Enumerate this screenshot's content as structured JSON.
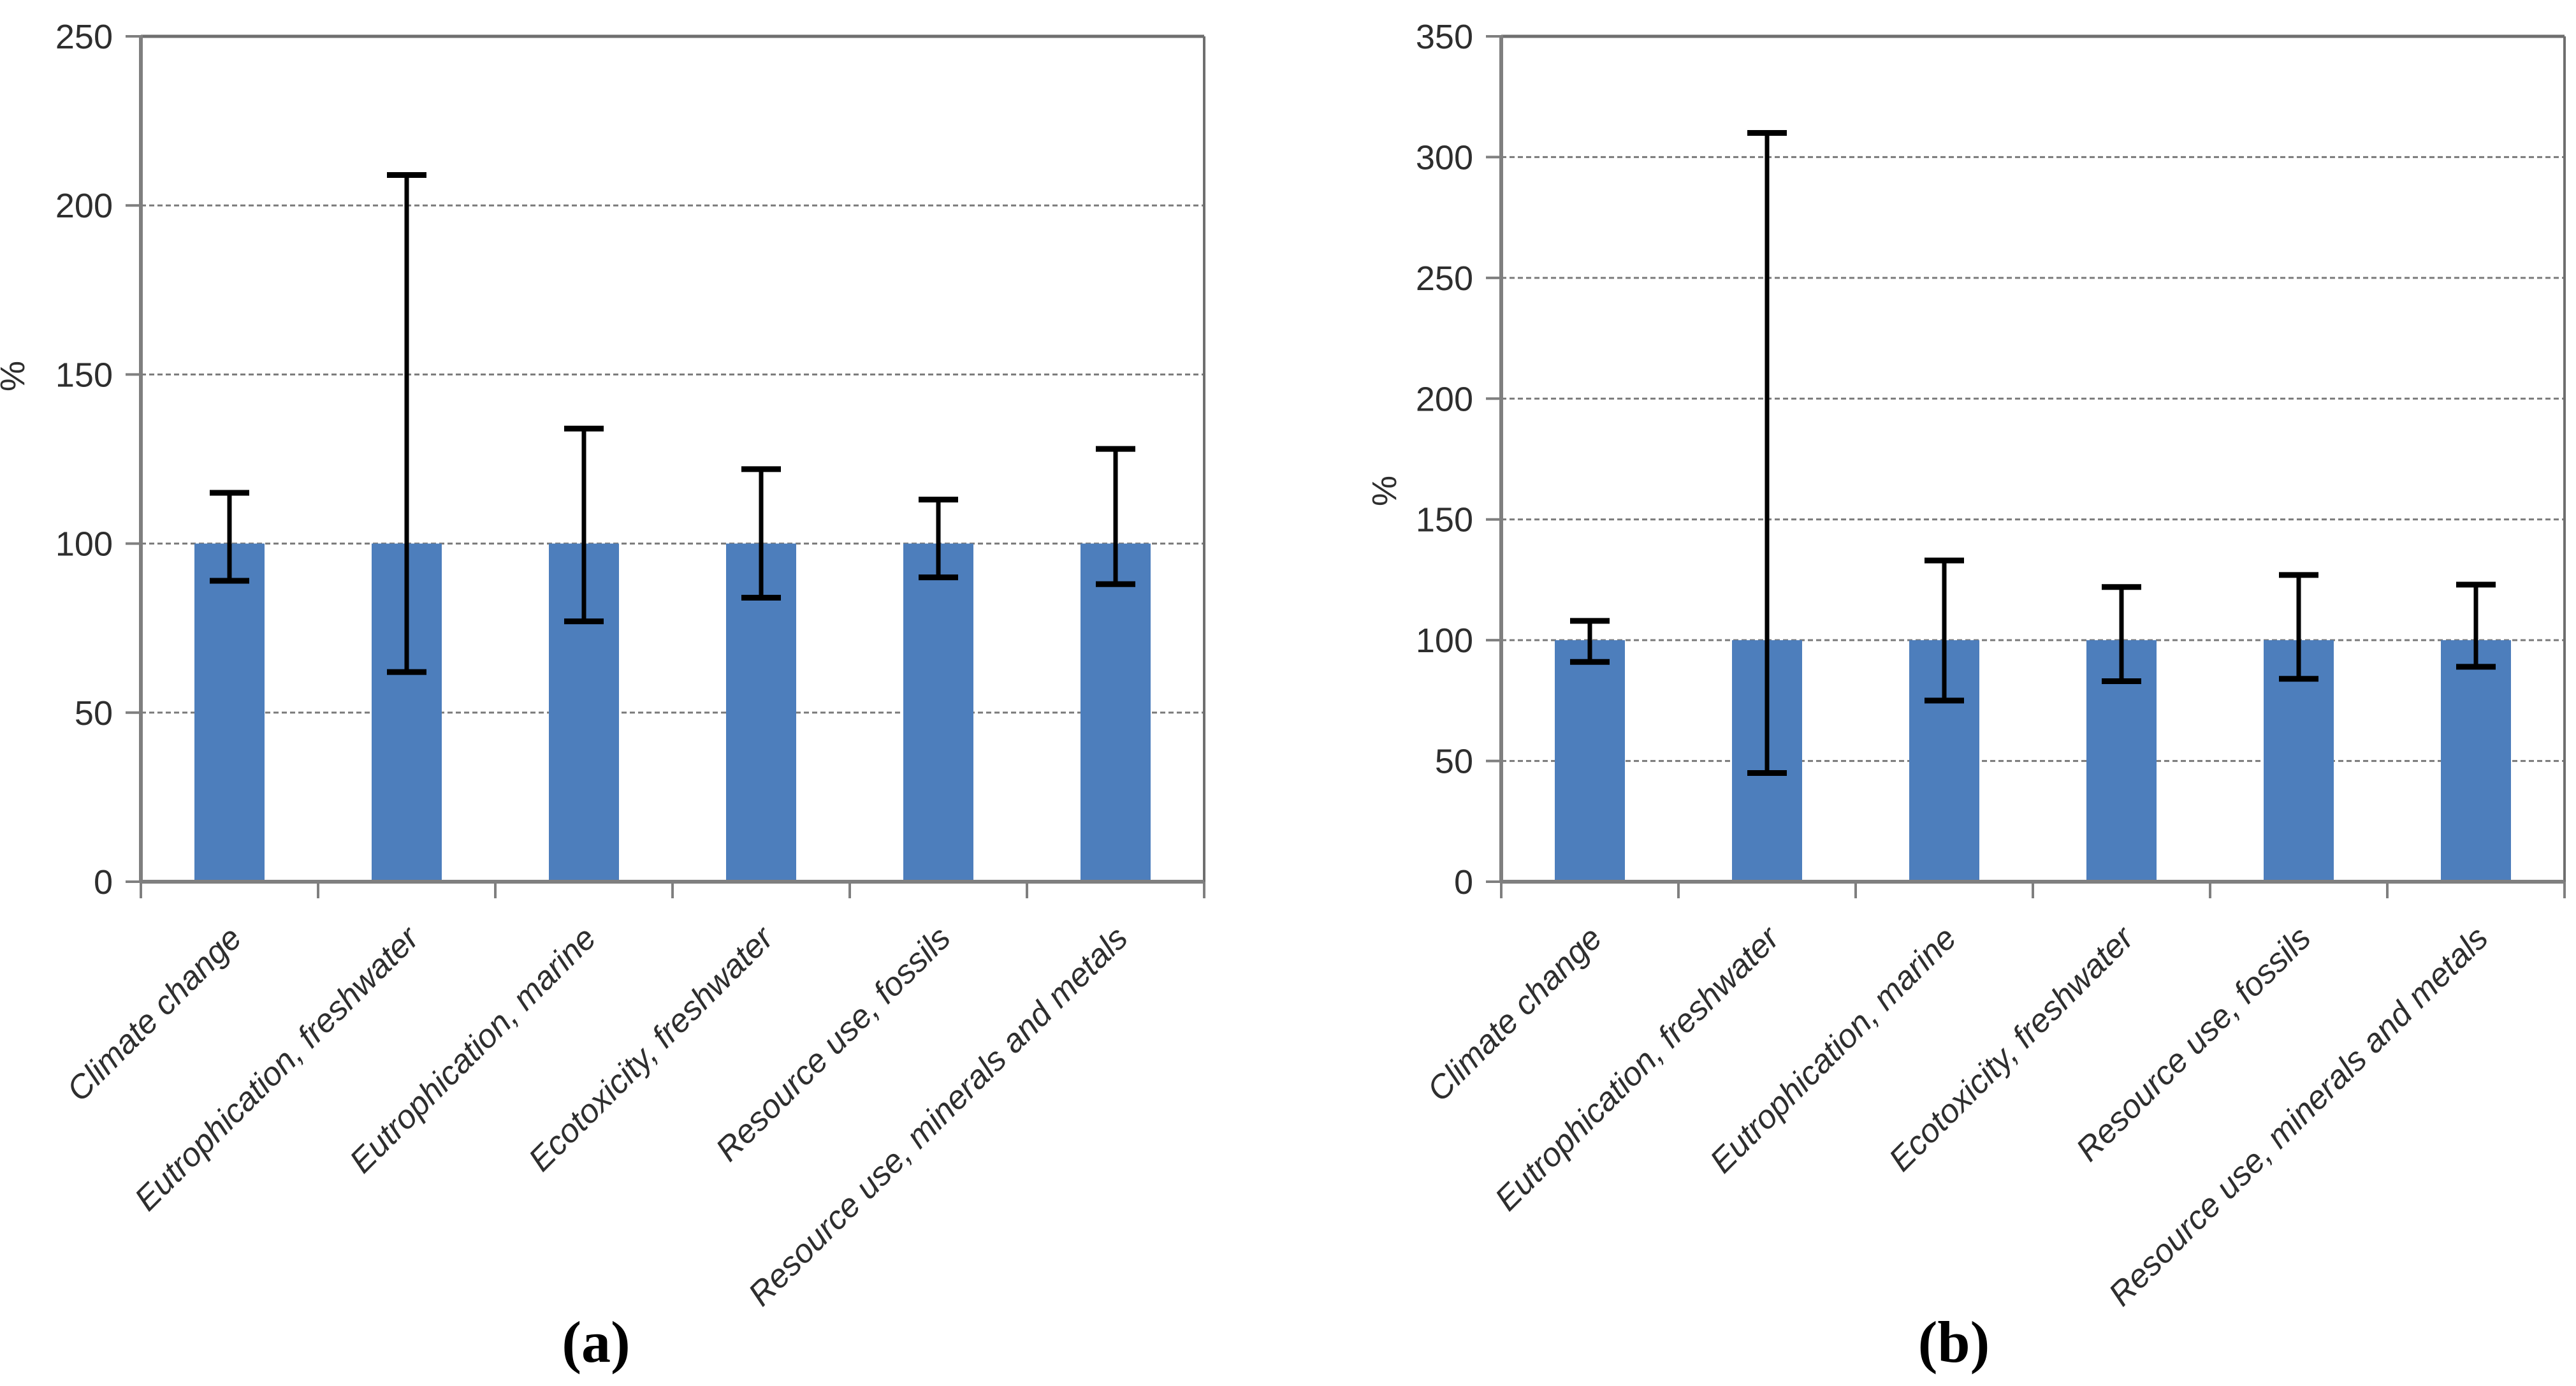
{
  "figure": {
    "background": "#ffffff",
    "captions": {
      "a": "(a)",
      "b": "(b)"
    }
  },
  "colors": {
    "bar": "#4d7ebc",
    "gridline": "#7a7a7a",
    "border": "#6e6e6e",
    "axis": "#7f7f7f",
    "error_bar": "#000000",
    "text": "#2e2e2e"
  },
  "chart_data": [
    {
      "id": "a",
      "type": "bar",
      "caption": "(a)",
      "ylabel": "%",
      "ylim": [
        0,
        250
      ],
      "ytick_step": 50,
      "yticks": [
        0,
        50,
        100,
        150,
        200,
        250
      ],
      "grid": true,
      "legend": null,
      "categories": [
        "Climate change",
        "Eutrophication, freshwater",
        "Eutrophication, marine",
        "Ecotoxicity, freshwater",
        "Resource use, fossils",
        "Resource use, minerals and metals"
      ],
      "values": [
        100,
        100,
        100,
        100,
        100,
        100
      ],
      "error_bars": {
        "high": [
          115,
          209,
          134,
          122,
          113,
          128
        ],
        "low": [
          89,
          62,
          77,
          84,
          90,
          88
        ]
      }
    },
    {
      "id": "b",
      "type": "bar",
      "caption": "(b)",
      "ylabel": "%",
      "ylim": [
        0,
        350
      ],
      "ytick_step": 50,
      "yticks": [
        0,
        50,
        100,
        150,
        200,
        250,
        300,
        350
      ],
      "grid": true,
      "legend": null,
      "categories": [
        "Climate change",
        "Eutrophication, freshwater",
        "Eutrophication, marine",
        "Ecotoxicity, freshwater",
        "Resource use, fossils",
        "Resource use, minerals and metals"
      ],
      "values": [
        100,
        100,
        100,
        100,
        100,
        100
      ],
      "error_bars": {
        "high": [
          108,
          310,
          133,
          122,
          127,
          123
        ],
        "low": [
          91,
          45,
          75,
          83,
          84,
          89
        ]
      }
    }
  ]
}
